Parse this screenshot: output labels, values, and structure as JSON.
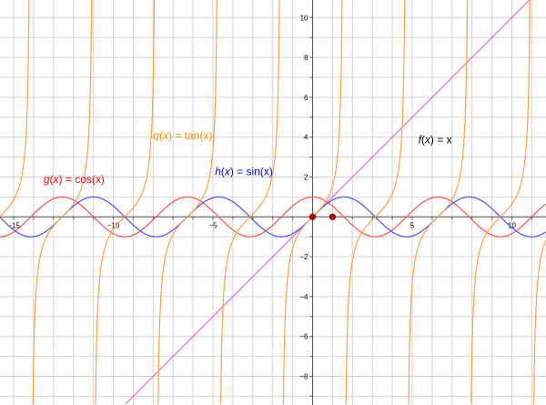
{
  "chart_data": {
    "type": "line",
    "title": "",
    "xlabel": "",
    "ylabel": "",
    "xlim": [
      -15.7,
      11.7
    ],
    "ylim": [
      -9.4,
      10.9
    ],
    "grid": true,
    "grid_step": 1,
    "x_ticks": [
      -15,
      -10,
      -5,
      5,
      10
    ],
    "y_ticks": [
      -8,
      -6,
      -4,
      -2,
      2,
      4,
      6,
      8,
      10
    ],
    "series": [
      {
        "name": "f(x) = x",
        "expr": "x",
        "color": "#e066e6"
      },
      {
        "name": "g(x) = cos(x)",
        "expr": "cos",
        "color": "#ff4d4d"
      },
      {
        "name": "h(x) = sin(x)",
        "expr": "sin",
        "color": "#4d4dff"
      },
      {
        "name": "q(x) = tan(x)",
        "expr": "tan",
        "color": "#ffa040"
      }
    ],
    "labels": [
      {
        "id": "f",
        "func": "f",
        "rest": " = x",
        "color": "#000000",
        "at": [
          5.3,
          3.7
        ]
      },
      {
        "id": "g",
        "func": "g",
        "rest": " = cos(x)",
        "color": "#ff0000",
        "at": [
          -13.5,
          1.7
        ]
      },
      {
        "id": "h",
        "func": "h",
        "rest": " = sin(x)",
        "color": "#0000ff",
        "at": [
          -4.9,
          2.1
        ]
      },
      {
        "id": "q",
        "func": "q",
        "rest": " = tan(x)",
        "color": "#ff8c00",
        "at": [
          -8,
          3.9
        ]
      }
    ],
    "points": [
      [
        0,
        0
      ],
      [
        1,
        0
      ]
    ],
    "point_color": "#cc0000"
  }
}
